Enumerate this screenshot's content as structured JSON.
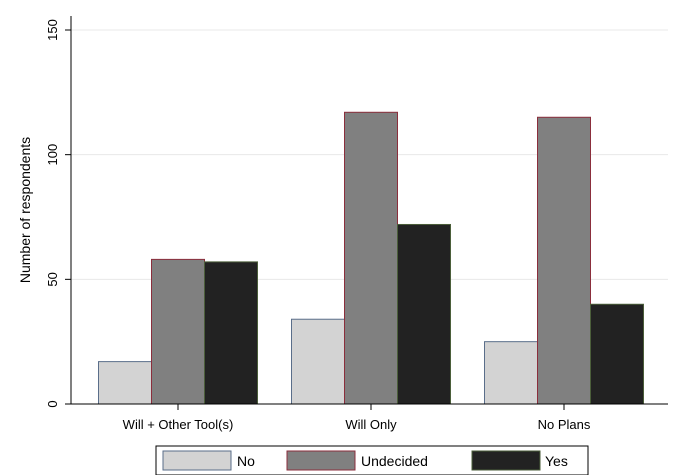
{
  "chart_data": {
    "type": "bar",
    "title": "",
    "xlabel": "",
    "ylabel": "Number of respondents",
    "ylim": [
      0,
      150
    ],
    "yticks": [
      0,
      50,
      100,
      150
    ],
    "grid": true,
    "legend_position": "bottom",
    "categories": [
      "Will + Other Tool(s)",
      "Will Only",
      "No Plans"
    ],
    "series": [
      {
        "name": "No",
        "values": [
          17,
          34,
          25
        ],
        "color": "#d3d3d3",
        "stroke": "#5a6e8a"
      },
      {
        "name": "Undecided",
        "values": [
          58,
          117,
          115
        ],
        "color": "#808080",
        "stroke": "#8b2e3c"
      },
      {
        "name": "Yes",
        "values": [
          57,
          72,
          40
        ],
        "color": "#222222",
        "stroke": "#4b5e3a"
      }
    ]
  }
}
